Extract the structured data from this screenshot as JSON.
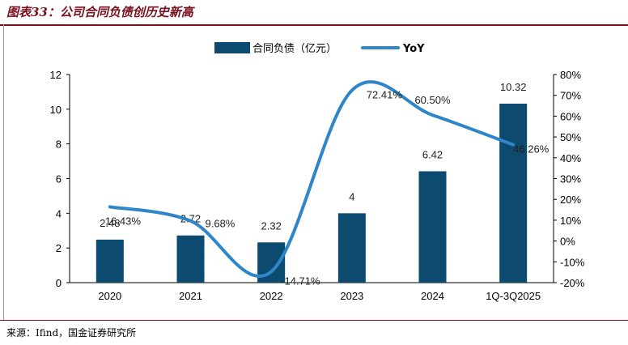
{
  "figure": {
    "title": "图表33：公司合同负债创历史新高",
    "source": "来源：Ifind，国金证券研究所"
  },
  "colors": {
    "bar": "#0d4a70",
    "line": "#2e86c8",
    "accent": "#7a0f1e"
  },
  "chart_data": {
    "type": "bar",
    "categories": [
      "2020",
      "2021",
      "2022",
      "2023",
      "2024",
      "1Q-3Q2025"
    ],
    "series": [
      {
        "name": "合同负债（亿元）",
        "type": "bar",
        "axis": "left",
        "values": [
          2.48,
          2.72,
          2.32,
          4,
          6.42,
          10.32
        ],
        "labels": [
          "2.48",
          "2.72",
          "2.32",
          "4",
          "6.42",
          "10.32"
        ]
      },
      {
        "name": "YoY",
        "type": "line",
        "axis": "right",
        "smooth": true,
        "values": [
          16.43,
          9.68,
          -14.71,
          72.41,
          60.5,
          46.26
        ],
        "labels": [
          "16.43%",
          "9.68%",
          "-14.71%",
          "72.41%",
          "60.50%",
          "46.26%"
        ]
      }
    ],
    "y_left": {
      "min": 0,
      "max": 12,
      "ticks": [
        "0",
        "2",
        "4",
        "6",
        "8",
        "10",
        "12"
      ]
    },
    "y_right": {
      "min": -20,
      "max": 80,
      "ticks": [
        "-20%",
        "-10%",
        "0%",
        "10%",
        "20%",
        "30%",
        "40%",
        "50%",
        "60%",
        "70%",
        "80%"
      ]
    },
    "legend": "top-center",
    "grid": false
  }
}
